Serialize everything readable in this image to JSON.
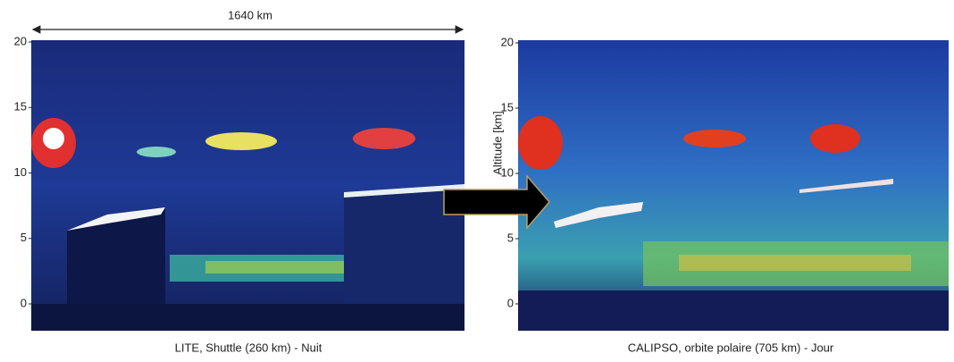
{
  "scale_label": "1640 km",
  "panels": [
    {
      "caption": "LITE, Shuttle (260 km) - Nuit",
      "yticks": [
        20,
        15,
        10,
        5,
        0
      ]
    },
    {
      "caption": "CALIPSO, orbite polaire (705 km) - Jour",
      "ylabel": "Altitude [km]",
      "yticks": [
        20,
        15,
        10,
        5,
        0
      ]
    }
  ]
}
